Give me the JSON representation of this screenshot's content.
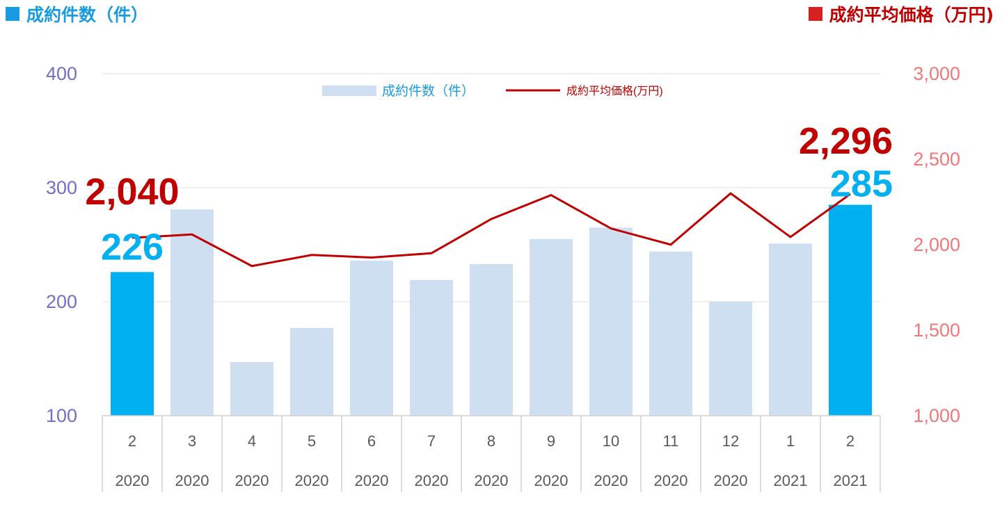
{
  "header": {
    "left_title": "成約件数（件）",
    "right_title": "成約平均価格（万円)"
  },
  "colors": {
    "bar_highlight": "#00b0f0",
    "bar_normal": "#cfdff2",
    "line": "#c00000",
    "left_axis": "#7070c8",
    "right_axis": "#f07878",
    "header_left": "#1a9be0",
    "header_right": "#c00000"
  },
  "chart_data": {
    "type": "bar",
    "categories": [
      [
        "2",
        "2020"
      ],
      [
        "3",
        "2020"
      ],
      [
        "4",
        "2020"
      ],
      [
        "5",
        "2020"
      ],
      [
        "6",
        "2020"
      ],
      [
        "7",
        "2020"
      ],
      [
        "8",
        "2020"
      ],
      [
        "9",
        "2020"
      ],
      [
        "10",
        "2020"
      ],
      [
        "11",
        "2020"
      ],
      [
        "12",
        "2020"
      ],
      [
        "1",
        "2021"
      ],
      [
        "2",
        "2021"
      ]
    ],
    "highlight_indices": [
      0,
      12
    ],
    "y_left": {
      "ylim": [
        100,
        400
      ],
      "ticks": [
        "100",
        "200",
        "300",
        "400"
      ]
    },
    "y_right": {
      "ylim": [
        1000,
        3000
      ],
      "ticks": [
        "1,000",
        "1,500",
        "2,000",
        "2,500",
        "3,000"
      ]
    },
    "grid": "horizontal",
    "legend": "top-center",
    "series": [
      {
        "name": "成約件数（件）",
        "type": "bar",
        "axis": "left",
        "values": [
          226,
          281,
          147,
          177,
          236,
          219,
          233,
          255,
          265,
          244,
          200,
          251,
          285
        ]
      },
      {
        "name": "成約平均価格(万円)",
        "type": "line",
        "axis": "right",
        "values": [
          2040,
          2060,
          1875,
          1940,
          1925,
          1950,
          2150,
          2290,
          2095,
          2000,
          2300,
          2045,
          2296
        ]
      }
    ],
    "annotations": [
      {
        "series": 0,
        "index": 0,
        "label": "226"
      },
      {
        "series": 0,
        "index": 12,
        "label": "285"
      },
      {
        "series": 1,
        "index": 0,
        "label": "2,040"
      },
      {
        "series": 1,
        "index": 12,
        "label": "2,296"
      }
    ]
  }
}
